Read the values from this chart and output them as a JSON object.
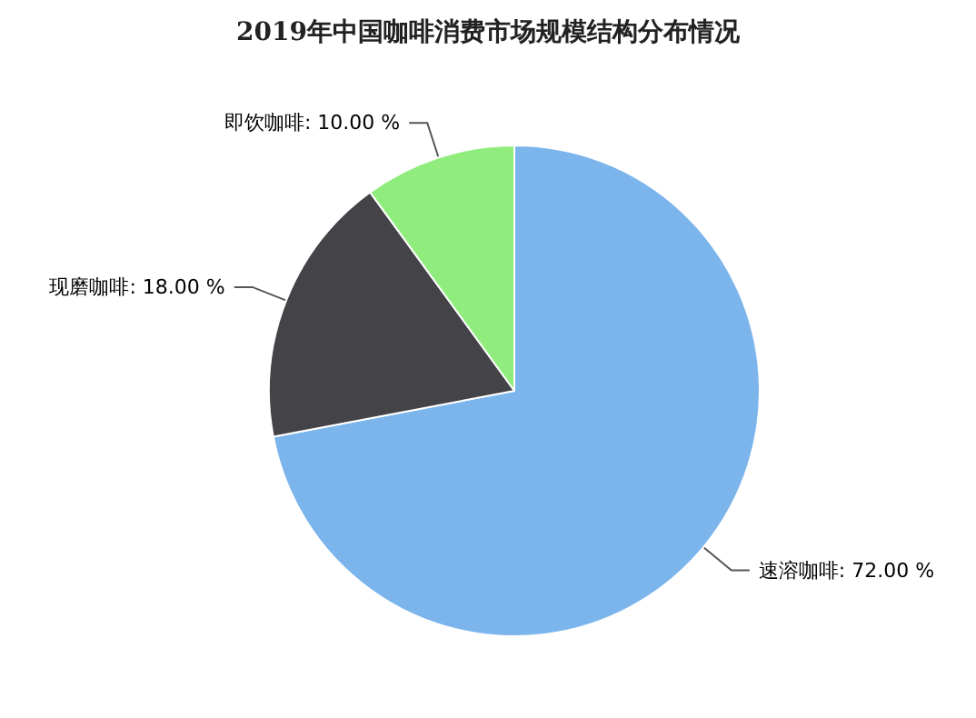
{
  "chart_data": {
    "type": "pie",
    "title": "2019年中国咖啡消费市场规模结构分布情况",
    "categories": [
      "速溶咖啡",
      "现磨咖啡",
      "即饮咖啡"
    ],
    "values": [
      72,
      18,
      10
    ],
    "value_labels": [
      "72.00 %",
      "18.00 %",
      "10.00 %"
    ],
    "colors": [
      "#7cb5ec",
      "#434348",
      "#90ed7d"
    ],
    "legend": false
  }
}
